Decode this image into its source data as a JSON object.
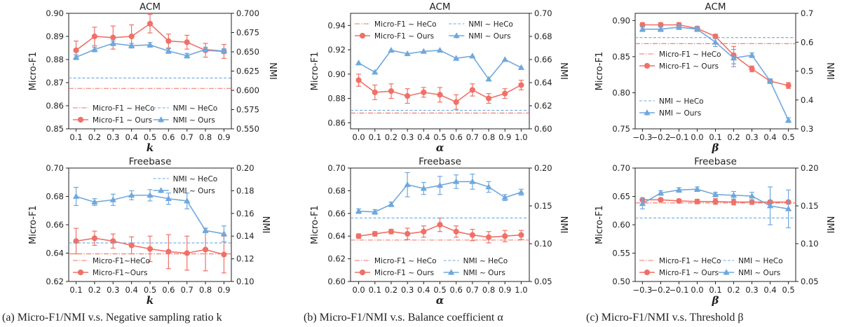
{
  "colors": {
    "ours_f1": "#f07067",
    "ours_nmi": "#6fa8dc",
    "heco_f1": "#f07067",
    "heco_nmi": "#6fa8dc"
  },
  "captions": [
    "(a) Micro-F1/NMI v.s. Negative sampling ratio k",
    "(b) Micro-F1/NMI v.s. Balance coefficient α",
    "(c) Micro-F1/NMI v.s. Threshold β"
  ],
  "chart_data": [
    {
      "type": "line",
      "title": "ACM",
      "xlabel": "k",
      "ylabel": "Micro-F1",
      "y2label": "NMI",
      "x": [
        0.1,
        0.2,
        0.3,
        0.4,
        0.5,
        0.6,
        0.7,
        0.8,
        0.9
      ],
      "xticks": [
        "0.1",
        "0.2",
        "0.3",
        "0.4",
        "0.5",
        "0.6",
        "0.7",
        "0.8",
        "0.9"
      ],
      "ylim": [
        0.85,
        0.9
      ],
      "yticks": [
        "0.85",
        "0.86",
        "0.87",
        "0.88",
        "0.89",
        "0.90"
      ],
      "y2lim": [
        0.55,
        0.7
      ],
      "y2ticks": [
        "0.550",
        "0.575",
        "0.600",
        "0.625",
        "0.650",
        "0.675",
        "0.700"
      ],
      "legend": "bottom",
      "legend_labels": {
        "heco_f1": "Micro-F1 ~ HeCo",
        "heco_nmi": "NMI ~ HeCo",
        "ours_f1": "Micro-F1 ~ Ours",
        "ours_nmi": "NMI ~ Ours"
      },
      "series": [
        {
          "name": "Micro-F1 ~ Ours",
          "axis": "left",
          "kind": "ours_f1",
          "values": [
            0.884,
            0.89,
            0.8895,
            0.89,
            0.8955,
            0.888,
            0.8875,
            0.884,
            0.8835
          ],
          "err": [
            0.004,
            0.004,
            0.005,
            0.005,
            0.004,
            0.003,
            0.003,
            0.003,
            0.003
          ]
        },
        {
          "name": "NMI ~ Ours",
          "axis": "right",
          "kind": "ours_nmi",
          "values": [
            0.643,
            0.653,
            0.661,
            0.658,
            0.659,
            0.651,
            0.645,
            0.653,
            0.651
          ],
          "err": [
            0.003,
            0.003,
            0.003,
            0.003,
            0.003,
            0.003,
            0.003,
            0.003,
            0.003
          ]
        },
        {
          "name": "Micro-F1 ~ HeCo",
          "axis": "left",
          "kind": "heco_f1",
          "const": 0.8675
        },
        {
          "name": "NMI ~ HeCo",
          "axis": "right",
          "kind": "heco_nmi",
          "const": 0.616
        }
      ]
    },
    {
      "type": "line",
      "title": "ACM",
      "xlabel": "α",
      "ylabel": "Micro-F1",
      "y2label": "NMI",
      "x": [
        0.0,
        0.1,
        0.2,
        0.3,
        0.4,
        0.5,
        0.6,
        0.7,
        0.8,
        0.9,
        1.0
      ],
      "xticks": [
        "0.0",
        "0.1",
        "0.2",
        "0.3",
        "0.4",
        "0.5",
        "0.6",
        "0.7",
        "0.8",
        "0.9",
        "1.0"
      ],
      "ylim": [
        0.855,
        0.95
      ],
      "yticks": [
        "0.86",
        "0.88",
        "0.90",
        "0.92",
        "0.94"
      ],
      "yticksv": [
        0.86,
        0.88,
        0.9,
        0.92,
        0.94
      ],
      "y2lim": [
        0.6,
        0.7
      ],
      "y2ticks": [
        "0.60",
        "0.62",
        "0.64",
        "0.66",
        "0.68",
        "0.70"
      ],
      "legend": "top",
      "legend_labels": {
        "heco_f1": "Micro-F1 ~ HeCo",
        "heco_nmi": "NMI ~ HeCo",
        "ours_f1": "Micro-F1 ~ Ours",
        "ours_nmi": "NMI ~ Ours"
      },
      "series": [
        {
          "name": "Micro-F1 ~ Ours",
          "axis": "left",
          "kind": "ours_f1",
          "values": [
            0.895,
            0.885,
            0.886,
            0.882,
            0.885,
            0.883,
            0.877,
            0.887,
            0.88,
            0.884,
            0.891
          ],
          "err": [
            0.005,
            0.006,
            0.006,
            0.006,
            0.004,
            0.006,
            0.006,
            0.005,
            0.004,
            0.004,
            0.004
          ]
        },
        {
          "name": "NMI ~ Ours",
          "axis": "right",
          "kind": "ours_nmi",
          "values": [
            0.657,
            0.649,
            0.668,
            0.665,
            0.667,
            0.668,
            0.661,
            0.663,
            0.643,
            0.66,
            0.653
          ]
        },
        {
          "name": "Micro-F1 ~ HeCo",
          "axis": "left",
          "kind": "heco_f1",
          "const": 0.868
        },
        {
          "name": "NMI ~ HeCo",
          "axis": "right",
          "kind": "heco_nmi",
          "const": 0.616
        }
      ]
    },
    {
      "type": "line",
      "title": "ACM",
      "xlabel": "β",
      "ylabel": "Micro-F1",
      "y2label": "NMI",
      "x": [
        -0.3,
        -0.2,
        -0.1,
        0.0,
        0.1,
        0.2,
        0.3,
        0.4,
        0.5
      ],
      "xticks": [
        "−0.3",
        "−0.2",
        "−0.1",
        "0.0",
        "0.1",
        "0.2",
        "0.3",
        "0.4",
        "0.5"
      ],
      "ylim": [
        0.75,
        0.91
      ],
      "yticks": [
        "0.75",
        "0.80",
        "0.85",
        "0.90"
      ],
      "yticksv": [
        0.75,
        0.8,
        0.85,
        0.9
      ],
      "y2lim": [
        0.3,
        0.7
      ],
      "y2ticks": [
        "0.3",
        "0.4",
        "0.5",
        "0.6",
        "0.7"
      ],
      "legend": "left-stack",
      "legend_labels": {
        "heco_f1": "Micro-F1 ~ HeCo",
        "heco_nmi": "NMI ~ HeCo",
        "ours_f1": "Micro-F1 ~ Ours",
        "ours_nmi": "NMI ~ Ours"
      },
      "series": [
        {
          "name": "Micro-F1 ~ Ours",
          "axis": "left",
          "kind": "ours_f1",
          "values": [
            0.894,
            0.894,
            0.894,
            0.889,
            0.878,
            0.852,
            0.833,
            0.816,
            0.81
          ],
          "err": [
            0.003,
            0.003,
            0.003,
            0.003,
            0.003,
            0.012,
            0.004,
            0.003,
            0.004
          ]
        },
        {
          "name": "NMI ~ Ours",
          "axis": "right",
          "kind": "ours_nmi",
          "values": [
            0.645,
            0.645,
            0.652,
            0.645,
            0.6,
            0.545,
            0.555,
            0.465,
            0.33
          ],
          "err": [
            0.008,
            0.008,
            0.008,
            0.008,
            0.015,
            0.03,
            0.008,
            0.008,
            0.008
          ]
        },
        {
          "name": "Micro-F1 ~ HeCo",
          "axis": "left",
          "kind": "heco_f1",
          "const": 0.868
        },
        {
          "name": "NMI ~ HeCo",
          "axis": "right",
          "kind": "heco_nmi",
          "const": 0.616
        }
      ]
    },
    {
      "type": "line",
      "title": "Freebase",
      "xlabel": "k",
      "ylabel": "Micro-F1",
      "y2label": "NMI",
      "x": [
        0.1,
        0.2,
        0.3,
        0.4,
        0.5,
        0.6,
        0.7,
        0.8,
        0.9
      ],
      "xticks": [
        "0.1",
        "0.2",
        "0.3",
        "0.4",
        "0.5",
        "0.6",
        "0.7",
        "0.8",
        "0.9"
      ],
      "ylim": [
        0.62,
        0.7
      ],
      "yticks": [
        "0.62",
        "0.64",
        "0.66",
        "0.68",
        "0.70"
      ],
      "y2lim": [
        0.1,
        0.2
      ],
      "y2ticks": [
        "0.10",
        "0.12",
        "0.14",
        "0.16",
        "0.18",
        "0.20"
      ],
      "legend": "split",
      "legend_labels": {
        "heco_f1": "Micro-F1~HeCo",
        "heco_nmi": "NMI ~ HeCo",
        "ours_f1": "Micro-F1~Ours",
        "ours_nmi": "NMI ~ Ours"
      },
      "series": [
        {
          "name": "Micro-F1~Ours",
          "axis": "left",
          "kind": "ours_f1",
          "values": [
            0.6485,
            0.6505,
            0.6485,
            0.6455,
            0.643,
            0.641,
            0.64,
            0.6425,
            0.639
          ],
          "err": [
            0.009,
            0.005,
            0.005,
            0.006,
            0.009,
            0.012,
            0.012,
            0.015,
            0.013
          ]
        },
        {
          "name": "NMI ~ Ours",
          "axis": "right",
          "kind": "ours_nmi",
          "values": [
            0.175,
            0.17,
            0.172,
            0.176,
            0.176,
            0.173,
            0.171,
            0.145,
            0.142
          ],
          "err": [
            0.008,
            0.003,
            0.005,
            0.004,
            0.005,
            0.005,
            0.007,
            0.002,
            0.007
          ]
        },
        {
          "name": "Micro-F1~HeCo",
          "axis": "left",
          "kind": "heco_f1",
          "const": 0.6395
        },
        {
          "name": "NMI ~ HeCo",
          "axis": "right",
          "kind": "heco_nmi",
          "const": 0.134
        }
      ]
    },
    {
      "type": "line",
      "title": "Freebase",
      "xlabel": "α",
      "ylabel": "Micro-F1",
      "y2label": "NMI",
      "x": [
        0.0,
        0.1,
        0.2,
        0.3,
        0.4,
        0.5,
        0.6,
        0.7,
        0.8,
        0.9,
        1.0
      ],
      "xticks": [
        "0.0",
        "0.1",
        "0.2",
        "0.3",
        "0.4",
        "0.5",
        "0.6",
        "0.7",
        "0.8",
        "0.9",
        "1.0"
      ],
      "ylim": [
        0.6,
        0.7
      ],
      "yticks": [
        "0.60",
        "0.62",
        "0.64",
        "0.66",
        "0.68",
        "0.70"
      ],
      "y2lim": [
        0.05,
        0.2
      ],
      "y2ticks": [
        "0.05",
        "0.10",
        "0.15",
        "0.20"
      ],
      "y2ticksv": [
        0.05,
        0.1,
        0.15,
        0.2
      ],
      "legend": "bottom",
      "legend_labels": {
        "heco_f1": "Micro-F1 ~ HeCo",
        "heco_nmi": "NMI ~ HeCo",
        "ours_f1": "Micro-F1 ~ Ours",
        "ours_nmi": "NMI ~ Ours"
      },
      "series": [
        {
          "name": "Micro-F1 ~ Ours",
          "axis": "left",
          "kind": "ours_f1",
          "values": [
            0.64,
            0.642,
            0.644,
            0.642,
            0.644,
            0.65,
            0.644,
            0.641,
            0.639,
            0.64,
            0.641
          ],
          "err": [
            0.002,
            0.002,
            0.002,
            0.005,
            0.005,
            0.006,
            0.005,
            0.005,
            0.005,
            0.005,
            0.004
          ]
        },
        {
          "name": "NMI ~ Ours",
          "axis": "right",
          "kind": "ours_nmi",
          "values": [
            0.143,
            0.142,
            0.152,
            0.178,
            0.173,
            0.177,
            0.182,
            0.182,
            0.175,
            0.161,
            0.168
          ],
          "err": [
            0.003,
            0.003,
            0.003,
            0.016,
            0.008,
            0.012,
            0.009,
            0.01,
            0.007,
            0.004,
            0.004
          ]
        },
        {
          "name": "Micro-F1 ~ HeCo",
          "axis": "left",
          "kind": "heco_f1",
          "const": 0.6365
        },
        {
          "name": "NMI ~ HeCo",
          "axis": "right",
          "kind": "heco_nmi",
          "const": 0.134
        }
      ]
    },
    {
      "type": "line",
      "title": "Freebase",
      "xlabel": "β",
      "ylabel": "Micro-F1",
      "y2label": "NMI",
      "x": [
        -0.3,
        -0.2,
        -0.1,
        0.0,
        0.1,
        0.2,
        0.3,
        0.4,
        0.5
      ],
      "xticks": [
        "−0.3",
        "−0.2",
        "−0.1",
        "0.0",
        "0.1",
        "0.2",
        "0.3",
        "0.4",
        "0.5"
      ],
      "ylim": [
        0.5,
        0.7
      ],
      "yticks": [
        "0.50",
        "0.55",
        "0.60",
        "0.65",
        "0.70"
      ],
      "y2lim": [
        0.05,
        0.2
      ],
      "y2ticks": [
        "0.05",
        "0.10",
        "0.15",
        "0.20"
      ],
      "y2ticksv": [
        0.05,
        0.1,
        0.15,
        0.2
      ],
      "legend": "bottom",
      "legend_labels": {
        "heco_f1": "Micro-F1 ~ HeCo",
        "heco_nmi": "NMI ~ HeCo",
        "ours_f1": "Micro-F1 ~ Ours",
        "ours_nmi": "NMI ~ Ours"
      },
      "series": [
        {
          "name": "Micro-F1 ~ Ours",
          "axis": "left",
          "kind": "ours_f1",
          "values": [
            0.644,
            0.644,
            0.642,
            0.641,
            0.641,
            0.64,
            0.64,
            0.64,
            0.64
          ],
          "err": [
            0.003,
            0.003,
            0.003,
            0.004,
            0.005,
            0.005,
            0.004,
            0.003,
            0.003
          ]
        },
        {
          "name": "NMI ~ Ours",
          "axis": "right",
          "kind": "ours_nmi",
          "values": [
            0.153,
            0.167,
            0.171,
            0.172,
            0.165,
            0.164,
            0.163,
            0.15,
            0.146
          ],
          "err": [
            0.007,
            0.003,
            0.003,
            0.003,
            0.003,
            0.005,
            0.005,
            0.025,
            0.025
          ]
        },
        {
          "name": "Micro-F1 ~ HeCo",
          "axis": "left",
          "kind": "heco_f1",
          "const": 0.6385
        },
        {
          "name": "NMI ~ HeCo",
          "axis": "right",
          "kind": "heco_nmi",
          "const": 0.134
        }
      ]
    }
  ]
}
